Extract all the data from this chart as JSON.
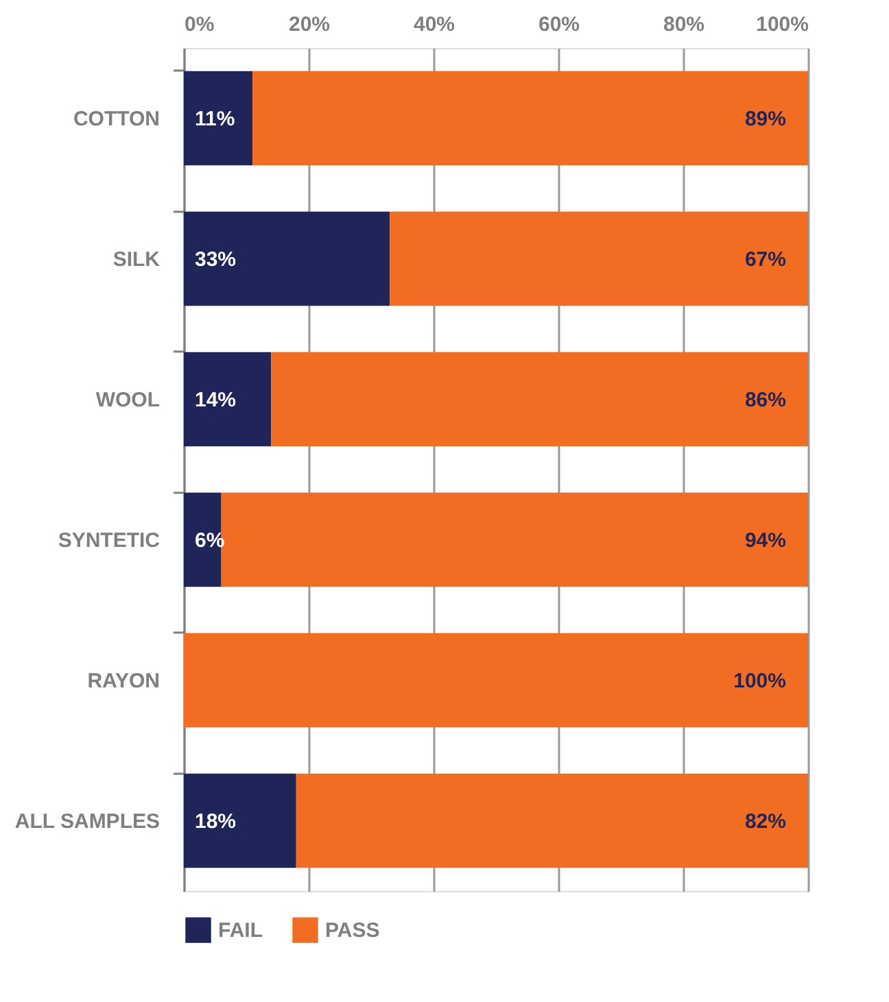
{
  "chart_data": {
    "type": "bar",
    "orientation": "horizontal",
    "stacked": true,
    "categories": [
      "COTTON",
      "SILK",
      "WOOL",
      "SYNTETIC",
      "RAYON",
      "ALL SAMPLES"
    ],
    "series": [
      {
        "name": "FAIL",
        "color": "#1f2459",
        "values": [
          11,
          33,
          14,
          6,
          0,
          18
        ],
        "value_labels": [
          "11%",
          "33%",
          "14%",
          "6%",
          null,
          "18%"
        ]
      },
      {
        "name": "PASS",
        "color": "#f26d21",
        "values": [
          89,
          67,
          86,
          94,
          100,
          82
        ],
        "value_labels": [
          "89%",
          "67%",
          "86%",
          "94%",
          "100%",
          "82%"
        ]
      }
    ],
    "xlim": [
      0,
      100
    ],
    "xticks": [
      {
        "value": 0,
        "label": "0%"
      },
      {
        "value": 20,
        "label": "20%"
      },
      {
        "value": 40,
        "label": "40%"
      },
      {
        "value": 60,
        "label": "60%"
      },
      {
        "value": 80,
        "label": "80%"
      },
      {
        "value": 100,
        "label": "100%"
      }
    ],
    "grid": "x",
    "legend": "bottom"
  }
}
